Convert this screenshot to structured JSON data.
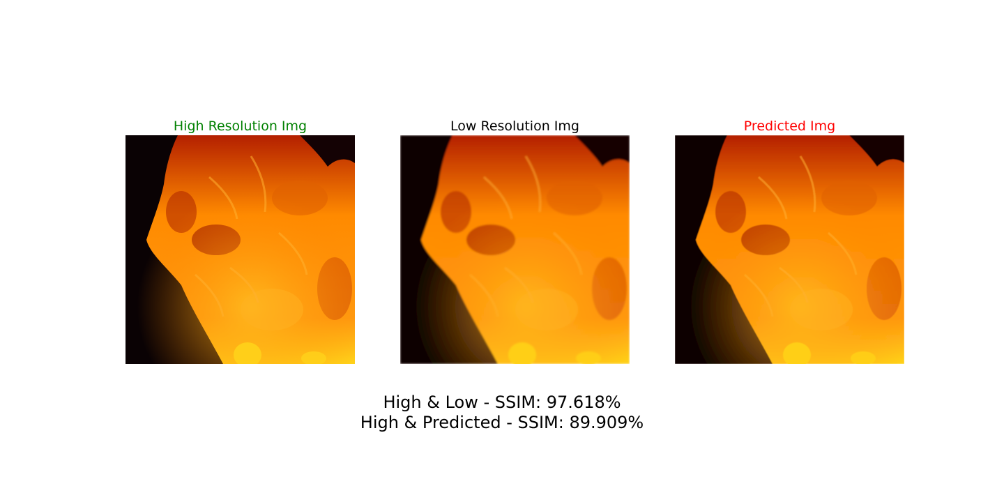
{
  "panels": [
    {
      "title": "High Resolution Img",
      "title_color": "#008000",
      "image": "fire-flames-photo",
      "blur": 0
    },
    {
      "title": "Low Resolution Img",
      "title_color": "#000000",
      "image": "fire-flames-photo",
      "blur": 1.2
    },
    {
      "title": "Predicted Img",
      "title_color": "#ff0000",
      "image": "fire-flames-photo",
      "blur": 0.5
    }
  ],
  "metrics": {
    "high_low": "High & Low - SSIM: 97.618%",
    "high_predicted": "High & Predicted - SSIM: 89.909%"
  },
  "colors": {
    "background": "#ffffff",
    "flame_core": "#ffd21a",
    "flame_mid": "#ff8a00",
    "flame_outer": "#c83200",
    "smoke_dark": "#0a0204"
  }
}
